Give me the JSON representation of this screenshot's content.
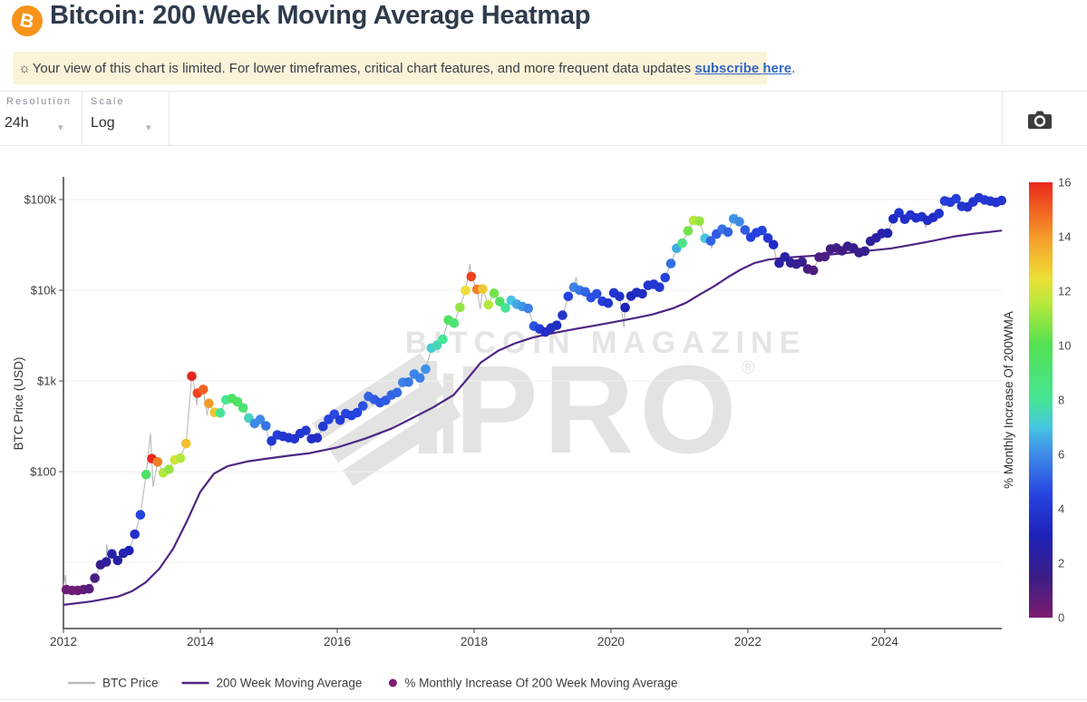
{
  "header": {
    "title": "Bitcoin: 200 Week Moving Average Heatmap",
    "logo_letter": "B"
  },
  "notice": {
    "icon": "☼",
    "text_before": "Your view of this chart is limited. For lower timeframes, critical chart features, and more frequent data updates ",
    "link_label": "subscribe here",
    "text_after": "."
  },
  "toolbar": {
    "resolution_label": "Resolution",
    "resolution_value": "24h",
    "scale_label": "Scale",
    "scale_value": "Log",
    "dropdown_chevron": "▾"
  },
  "watermark": {
    "line1": "BITCOIN MAGAZINE",
    "line2": "PRO",
    "reg": "®"
  },
  "legend": {
    "items": [
      {
        "label": "BTC Price",
        "swatch": "line",
        "color": "#b9b9b9"
      },
      {
        "label": "200 Week Moving Average",
        "swatch": "line",
        "color": "#4f2584"
      },
      {
        "label": "% Monthly Increase Of 200 Week Moving Average",
        "swatch": "dot",
        "color": "#7c1d6f"
      }
    ]
  },
  "chart_data": {
    "type": "scatter",
    "title": "Bitcoin: 200 Week Moving Average Heatmap",
    "xlabel": "",
    "ylabel": "BTC Price (USD)",
    "colorbar_label": "% Monthly Increase Of 200WMA",
    "x_range": [
      2012,
      2025.71
    ],
    "y_log_range": [
      1.86,
      177000
    ],
    "x_ticks": [
      2012,
      2014,
      2016,
      2018,
      2020,
      2022,
      2024
    ],
    "y_ticks": [
      {
        "label": "$100k",
        "v": 100000
      },
      {
        "label": "$10k",
        "v": 10000
      },
      {
        "label": "$1k",
        "v": 1000
      },
      {
        "label": "$100",
        "v": 100
      }
    ],
    "y_gridlines": [
      100000,
      10000,
      1000,
      100,
      10
    ],
    "colorbar_range": [
      0,
      16
    ],
    "colorbar_ticks": [
      0,
      2,
      4,
      6,
      8,
      10,
      12,
      14,
      16
    ],
    "colormap_stops": [
      {
        "v": 0,
        "color": "#7c1d6f"
      },
      {
        "v": 1.5,
        "color": "#3b1d86"
      },
      {
        "v": 3,
        "color": "#1e22b8"
      },
      {
        "v": 4.5,
        "color": "#2543e0"
      },
      {
        "v": 6,
        "color": "#3f8ae8"
      },
      {
        "v": 7,
        "color": "#46c5e0"
      },
      {
        "v": 8,
        "color": "#46e596"
      },
      {
        "v": 10,
        "color": "#52e052"
      },
      {
        "v": 11.5,
        "color": "#b5e83c"
      },
      {
        "v": 12.5,
        "color": "#eede35"
      },
      {
        "v": 14,
        "color": "#f49b2a"
      },
      {
        "v": 15.2,
        "color": "#f0551f"
      },
      {
        "v": 16,
        "color": "#e8281e"
      }
    ],
    "series": [
      {
        "name": "BTC Price",
        "type": "line",
        "color": "#b9b9b9"
      },
      {
        "name": "200 Week Moving Average",
        "type": "line",
        "color": "#4f2584"
      },
      {
        "name": "% Monthly Increase Of 200 Week Moving Average",
        "type": "colored-scatter",
        "legend_color": "#7c1d6f"
      }
    ],
    "monthly_points": [
      [
        2012.042,
        5.0,
        0.3
      ],
      [
        2012.125,
        4.9,
        0.3
      ],
      [
        2012.208,
        4.9,
        0.4
      ],
      [
        2012.292,
        5.0,
        0.6
      ],
      [
        2012.375,
        5.1,
        0.9
      ],
      [
        2012.458,
        6.7,
        1.2
      ],
      [
        2012.542,
        9.4,
        1.8
      ],
      [
        2012.625,
        10.1,
        2.2
      ],
      [
        2012.708,
        12.4,
        2.6
      ],
      [
        2012.792,
        10.5,
        2.4
      ],
      [
        2012.875,
        12.6,
        2.8
      ],
      [
        2012.958,
        13.5,
        3.0
      ],
      [
        2013.042,
        20.4,
        3.6
      ],
      [
        2013.125,
        33.4,
        4.5
      ],
      [
        2013.208,
        93,
        9.5
      ],
      [
        2013.292,
        139,
        16
      ],
      [
        2013.375,
        128,
        14.5
      ],
      [
        2013.458,
        97,
        11.5
      ],
      [
        2013.542,
        106,
        11
      ],
      [
        2013.625,
        135,
        12
      ],
      [
        2013.708,
        141,
        11.5
      ],
      [
        2013.792,
        204,
        13.2
      ],
      [
        2013.875,
        1127,
        16
      ],
      [
        2013.958,
        732,
        15.5
      ],
      [
        2014.042,
        805,
        15
      ],
      [
        2014.125,
        565,
        14
      ],
      [
        2014.208,
        450,
        13
      ],
      [
        2014.292,
        445,
        8
      ],
      [
        2014.375,
        620,
        8
      ],
      [
        2014.458,
        640,
        9.5
      ],
      [
        2014.542,
        590,
        9.5
      ],
      [
        2014.625,
        505,
        9
      ],
      [
        2014.708,
        390,
        7.5
      ],
      [
        2014.792,
        340,
        6
      ],
      [
        2014.875,
        375,
        6
      ],
      [
        2014.958,
        320,
        5.5
      ],
      [
        2015.042,
        218,
        4
      ],
      [
        2015.125,
        254,
        4.2
      ],
      [
        2015.208,
        245,
        4
      ],
      [
        2015.292,
        236,
        3.9
      ],
      [
        2015.375,
        230,
        3.8
      ],
      [
        2015.458,
        263,
        3.9
      ],
      [
        2015.542,
        284,
        4
      ],
      [
        2015.625,
        230,
        3.6
      ],
      [
        2015.708,
        236,
        3.6
      ],
      [
        2015.792,
        315,
        4
      ],
      [
        2015.875,
        377,
        4.4
      ],
      [
        2015.958,
        430,
        4.6
      ],
      [
        2016.042,
        370,
        4.2
      ],
      [
        2016.125,
        437,
        4.5
      ],
      [
        2016.208,
        416,
        4.4
      ],
      [
        2016.292,
        448,
        4.5
      ],
      [
        2016.375,
        531,
        4.8
      ],
      [
        2016.458,
        673,
        5.2
      ],
      [
        2016.542,
        624,
        5
      ],
      [
        2016.625,
        575,
        4.9
      ],
      [
        2016.708,
        610,
        5
      ],
      [
        2016.792,
        700,
        5.2
      ],
      [
        2016.875,
        745,
        5.3
      ],
      [
        2016.958,
        963,
        5.8
      ],
      [
        2017.042,
        970,
        5.6
      ],
      [
        2017.125,
        1190,
        5.9
      ],
      [
        2017.208,
        1080,
        5.8
      ],
      [
        2017.292,
        1350,
        6.1
      ],
      [
        2017.375,
        2300,
        7.2
      ],
      [
        2017.458,
        2480,
        7.6
      ],
      [
        2017.542,
        2875,
        8
      ],
      [
        2017.625,
        4700,
        9.5
      ],
      [
        2017.708,
        4340,
        9
      ],
      [
        2017.792,
        6470,
        11
      ],
      [
        2017.875,
        9950,
        12.5
      ],
      [
        2017.958,
        14160,
        15.5
      ],
      [
        2018.042,
        10230,
        14.5
      ],
      [
        2018.125,
        10300,
        13
      ],
      [
        2018.208,
        6930,
        11.5
      ],
      [
        2018.292,
        9240,
        10.5
      ],
      [
        2018.375,
        7500,
        9.5
      ],
      [
        2018.458,
        6400,
        8
      ],
      [
        2018.542,
        7750,
        7
      ],
      [
        2018.625,
        7010,
        6.5
      ],
      [
        2018.708,
        6600,
        6.2
      ],
      [
        2018.792,
        6300,
        5.8
      ],
      [
        2018.875,
        4020,
        4.8
      ],
      [
        2018.958,
        3740,
        4.2
      ],
      [
        2019.042,
        3460,
        3.6
      ],
      [
        2019.125,
        3850,
        3.5
      ],
      [
        2019.208,
        4100,
        3.5
      ],
      [
        2019.292,
        5300,
        3.8
      ],
      [
        2019.375,
        8550,
        4.5
      ],
      [
        2019.458,
        10800,
        5.8
      ],
      [
        2019.542,
        10000,
        5.6
      ],
      [
        2019.625,
        9600,
        5.2
      ],
      [
        2019.708,
        8300,
        4.8
      ],
      [
        2019.792,
        9150,
        4.8
      ],
      [
        2019.875,
        7550,
        4.2
      ],
      [
        2019.958,
        7200,
        3.9
      ],
      [
        2020.042,
        9350,
        4
      ],
      [
        2020.125,
        8550,
        3.7
      ],
      [
        2020.208,
        6440,
        3
      ],
      [
        2020.292,
        8630,
        3.2
      ],
      [
        2020.375,
        9450,
        3.4
      ],
      [
        2020.458,
        9140,
        3.4
      ],
      [
        2020.542,
        11330,
        3.8
      ],
      [
        2020.625,
        11650,
        4
      ],
      [
        2020.708,
        10780,
        3.9
      ],
      [
        2020.792,
        13800,
        4.4
      ],
      [
        2020.875,
        19700,
        5.4
      ],
      [
        2020.958,
        29000,
        6.6
      ],
      [
        2021.042,
        33100,
        8.5
      ],
      [
        2021.125,
        45100,
        10.5
      ],
      [
        2021.208,
        58800,
        11.5
      ],
      [
        2021.292,
        57750,
        11
      ],
      [
        2021.375,
        37300,
        7
      ],
      [
        2021.458,
        35000,
        5.2
      ],
      [
        2021.542,
        41600,
        5
      ],
      [
        2021.625,
        47100,
        5.5
      ],
      [
        2021.708,
        43800,
        5.2
      ],
      [
        2021.792,
        61300,
        6.2
      ],
      [
        2021.875,
        57000,
        6
      ],
      [
        2021.958,
        46200,
        5
      ],
      [
        2022.042,
        38500,
        4.4
      ],
      [
        2022.125,
        43200,
        4.4
      ],
      [
        2022.208,
        45500,
        4.5
      ],
      [
        2022.292,
        37650,
        4
      ],
      [
        2022.375,
        31800,
        3.4
      ],
      [
        2022.458,
        19900,
        2.4
      ],
      [
        2022.542,
        23300,
        2.5
      ],
      [
        2022.625,
        20050,
        2.1
      ],
      [
        2022.708,
        19400,
        1.9
      ],
      [
        2022.792,
        20500,
        1.7
      ],
      [
        2022.875,
        17150,
        1.2
      ],
      [
        2022.958,
        16550,
        1
      ],
      [
        2023.042,
        23100,
        1.1
      ],
      [
        2023.125,
        23500,
        1.1
      ],
      [
        2023.208,
        28500,
        1.3
      ],
      [
        2023.292,
        29250,
        1.4
      ],
      [
        2023.375,
        27200,
        1.3
      ],
      [
        2023.458,
        30470,
        1.6
      ],
      [
        2023.542,
        29230,
        1.7
      ],
      [
        2023.625,
        25940,
        1.6
      ],
      [
        2023.708,
        26960,
        1.7
      ],
      [
        2023.792,
        34660,
        2.1
      ],
      [
        2023.875,
        37720,
        2.4
      ],
      [
        2023.958,
        42280,
        2.6
      ],
      [
        2024.042,
        42580,
        2.7
      ],
      [
        2024.125,
        61200,
        3.3
      ],
      [
        2024.208,
        71300,
        3.8
      ],
      [
        2024.292,
        60640,
        3.6
      ],
      [
        2024.375,
        67500,
        3.8
      ],
      [
        2024.458,
        62680,
        3.7
      ],
      [
        2024.542,
        64620,
        3.7
      ],
      [
        2024.625,
        58970,
        3.5
      ],
      [
        2024.708,
        63330,
        3.5
      ],
      [
        2024.792,
        70220,
        3.7
      ],
      [
        2024.875,
        96400,
        4.2
      ],
      [
        2024.958,
        93430,
        4.2
      ],
      [
        2025.042,
        102100,
        4.3
      ],
      [
        2025.125,
        84350,
        3.9
      ],
      [
        2025.208,
        82550,
        3.7
      ],
      [
        2025.292,
        94200,
        3.8
      ],
      [
        2025.375,
        104600,
        3.9
      ],
      [
        2025.458,
        99000,
        4
      ],
      [
        2025.542,
        96000,
        3.9
      ],
      [
        2025.625,
        93000,
        3.8
      ],
      [
        2025.708,
        97500,
        3.9
      ]
    ],
    "price_extras": [
      [
        2012.0,
        5.3
      ],
      [
        2012.03,
        7.3
      ],
      [
        2012.07,
        5.5
      ],
      [
        2012.63,
        15.8
      ],
      [
        2012.67,
        10.0
      ],
      [
        2013.27,
        266
      ],
      [
        2013.31,
        68
      ],
      [
        2013.88,
        1240
      ],
      [
        2013.95,
        540
      ],
      [
        2014.1,
        420
      ],
      [
        2015.03,
        172
      ],
      [
        2016.44,
        780
      ],
      [
        2016.5,
        590
      ],
      [
        2017.94,
        19500
      ],
      [
        2018.09,
        6200
      ],
      [
        2019.49,
        13900
      ],
      [
        2019.52,
        10300
      ],
      [
        2020.19,
        3900
      ],
      [
        2021.28,
        64800
      ],
      [
        2021.47,
        29000
      ],
      [
        2021.84,
        68900
      ],
      [
        2022.44,
        17600
      ],
      [
        2022.88,
        15500
      ],
      [
        2024.18,
        73700
      ],
      [
        2024.6,
        49500
      ],
      [
        2024.93,
        108000
      ],
      [
        2025.07,
        106000
      ],
      [
        2025.25,
        76500
      ],
      [
        2025.41,
        111900
      ],
      [
        2025.71,
        99500
      ]
    ],
    "wma_points": [
      [
        2012.0,
        3.4
      ],
      [
        2012.4,
        3.7
      ],
      [
        2012.8,
        4.2
      ],
      [
        2013.0,
        4.8
      ],
      [
        2013.2,
        6
      ],
      [
        2013.4,
        8.5
      ],
      [
        2013.6,
        14
      ],
      [
        2013.8,
        28
      ],
      [
        2014.0,
        60
      ],
      [
        2014.2,
        95
      ],
      [
        2014.4,
        115
      ],
      [
        2014.7,
        130
      ],
      [
        2015.0,
        140
      ],
      [
        2015.3,
        150
      ],
      [
        2015.6,
        160
      ],
      [
        2016.0,
        185
      ],
      [
        2016.4,
        230
      ],
      [
        2016.8,
        300
      ],
      [
        2017.1,
        390
      ],
      [
        2017.4,
        510
      ],
      [
        2017.7,
        700
      ],
      [
        2017.9,
        1050
      ],
      [
        2018.1,
        1600
      ],
      [
        2018.35,
        2150
      ],
      [
        2018.6,
        2600
      ],
      [
        2018.85,
        3000
      ],
      [
        2019.1,
        3300
      ],
      [
        2019.4,
        3650
      ],
      [
        2019.7,
        4000
      ],
      [
        2020.0,
        4400
      ],
      [
        2020.3,
        4850
      ],
      [
        2020.6,
        5400
      ],
      [
        2020.9,
        6300
      ],
      [
        2021.1,
        7300
      ],
      [
        2021.3,
        9000
      ],
      [
        2021.5,
        11000
      ],
      [
        2021.7,
        13800
      ],
      [
        2021.9,
        17000
      ],
      [
        2022.1,
        20000
      ],
      [
        2022.3,
        21800
      ],
      [
        2022.6,
        23000
      ],
      [
        2022.9,
        23800
      ],
      [
        2023.2,
        24800
      ],
      [
        2023.5,
        26000
      ],
      [
        2023.8,
        27400
      ],
      [
        2024.1,
        29000
      ],
      [
        2024.4,
        31800
      ],
      [
        2024.7,
        35000
      ],
      [
        2025.0,
        39000
      ],
      [
        2025.3,
        42000
      ],
      [
        2025.6,
        44500
      ],
      [
        2025.71,
        45500
      ]
    ]
  }
}
